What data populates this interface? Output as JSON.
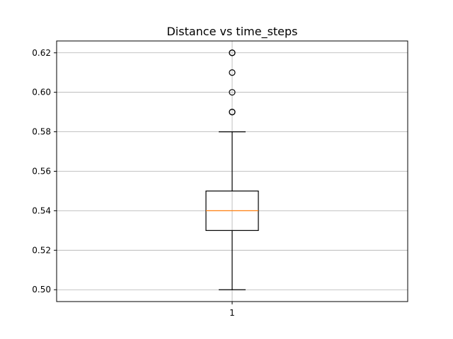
{
  "chart_data": {
    "type": "box",
    "title": "Distance vs time_steps",
    "xlabel": "",
    "ylabel": "",
    "categories": [
      "1"
    ],
    "ylim": [
      0.494,
      0.626
    ],
    "yticks": [
      0.5,
      0.52,
      0.54,
      0.56,
      0.58,
      0.6,
      0.62
    ],
    "ytick_labels": [
      "0.50",
      "0.52",
      "0.54",
      "0.56",
      "0.58",
      "0.60",
      "0.62"
    ],
    "grid": true,
    "boxes": [
      {
        "label": "1",
        "whisker_low": 0.5,
        "q1": 0.53,
        "median": 0.54,
        "q3": 0.55,
        "whisker_high": 0.58,
        "fliers": [
          0.59,
          0.59,
          0.6,
          0.61,
          0.62,
          0.62
        ]
      }
    ],
    "colors": {
      "box": "#000000",
      "median": "#ff7f0e",
      "grid": "#b0b0b0"
    }
  }
}
